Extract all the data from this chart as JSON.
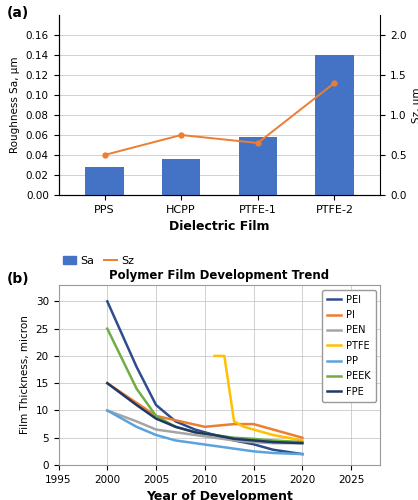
{
  "panel_a": {
    "categories": [
      "PPS",
      "HCPP",
      "PTFE-1",
      "PTFE-2"
    ],
    "Sa_values": [
      0.028,
      0.036,
      0.058,
      0.14
    ],
    "Sz_values": [
      0.5,
      0.75,
      0.65,
      1.4
    ],
    "Sa_color": "#4472C4",
    "Sz_color": "#ED7D31",
    "ylabel_left": "Roughness Sa, μm",
    "ylabel_right": "Sz, μm",
    "xlabel": "Dielectric Film",
    "ylim_left": [
      0,
      0.18
    ],
    "ylim_right": [
      0,
      2.25
    ],
    "yticks_left": [
      0,
      0.02,
      0.04,
      0.06,
      0.08,
      0.1,
      0.12,
      0.14,
      0.16
    ],
    "yticks_right": [
      0,
      0.5,
      1.0,
      1.5,
      2.0
    ],
    "legend_sa": "Sa",
    "legend_sz": "Sz",
    "label_a": "(a)"
  },
  "panel_b": {
    "title": "Polymer Film Development Trend",
    "xlabel": "Year of Development",
    "ylabel": "Film Thickness, micron",
    "xlim": [
      1995,
      2028
    ],
    "ylim": [
      0,
      33
    ],
    "xticks": [
      1995,
      2000,
      2005,
      2010,
      2015,
      2020,
      2025
    ],
    "yticks": [
      0,
      5,
      10,
      15,
      20,
      25,
      30
    ],
    "label_b": "(b)",
    "series": {
      "PEI": {
        "x": [
          2000,
          2003,
          2005,
          2007,
          2009,
          2011,
          2013,
          2015,
          2017,
          2020
        ],
        "y": [
          30.0,
          18.0,
          11.0,
          8.0,
          6.5,
          5.5,
          4.5,
          3.8,
          2.8,
          2.0
        ],
        "color": "#2E4D8E",
        "lw": 1.8
      },
      "PI": {
        "x": [
          2000,
          2005,
          2010,
          2013,
          2015,
          2017,
          2020
        ],
        "y": [
          15.0,
          9.0,
          7.0,
          7.5,
          7.5,
          6.5,
          5.0
        ],
        "color": "#ED7D31",
        "lw": 1.8
      },
      "PEN": {
        "x": [
          2000,
          2003,
          2005,
          2007,
          2009,
          2011,
          2013,
          2015,
          2017,
          2020
        ],
        "y": [
          10.0,
          8.0,
          6.5,
          6.0,
          5.5,
          5.0,
          4.5,
          4.2,
          4.0,
          4.0
        ],
        "color": "#A5A5A5",
        "lw": 1.8
      },
      "PTFE": {
        "x": [
          2011,
          2012,
          2013,
          2014,
          2015,
          2017,
          2020
        ],
        "y": [
          20.0,
          20.0,
          8.0,
          7.0,
          6.5,
          5.5,
          4.5
        ],
        "color": "#FFC000",
        "lw": 1.8
      },
      "PP": {
        "x": [
          2000,
          2003,
          2005,
          2007,
          2009,
          2011,
          2013,
          2015,
          2017,
          2020
        ],
        "y": [
          10.0,
          7.0,
          5.5,
          4.5,
          4.0,
          3.5,
          3.0,
          2.5,
          2.2,
          2.0
        ],
        "color": "#5BA3DC",
        "lw": 1.8
      },
      "PEEK": {
        "x": [
          2000,
          2003,
          2005,
          2007,
          2009,
          2011,
          2013,
          2015,
          2017,
          2020
        ],
        "y": [
          25.0,
          14.0,
          9.0,
          7.0,
          6.0,
          5.5,
          5.0,
          4.8,
          4.5,
          4.2
        ],
        "color": "#70AD47",
        "lw": 1.8
      },
      "FPE": {
        "x": [
          2000,
          2003,
          2005,
          2007,
          2009,
          2011,
          2013,
          2015,
          2017,
          2020
        ],
        "y": [
          15.0,
          11.0,
          8.5,
          7.0,
          6.0,
          5.5,
          4.8,
          4.5,
          4.2,
          4.0
        ],
        "color": "#1F3864",
        "lw": 1.8
      }
    }
  }
}
